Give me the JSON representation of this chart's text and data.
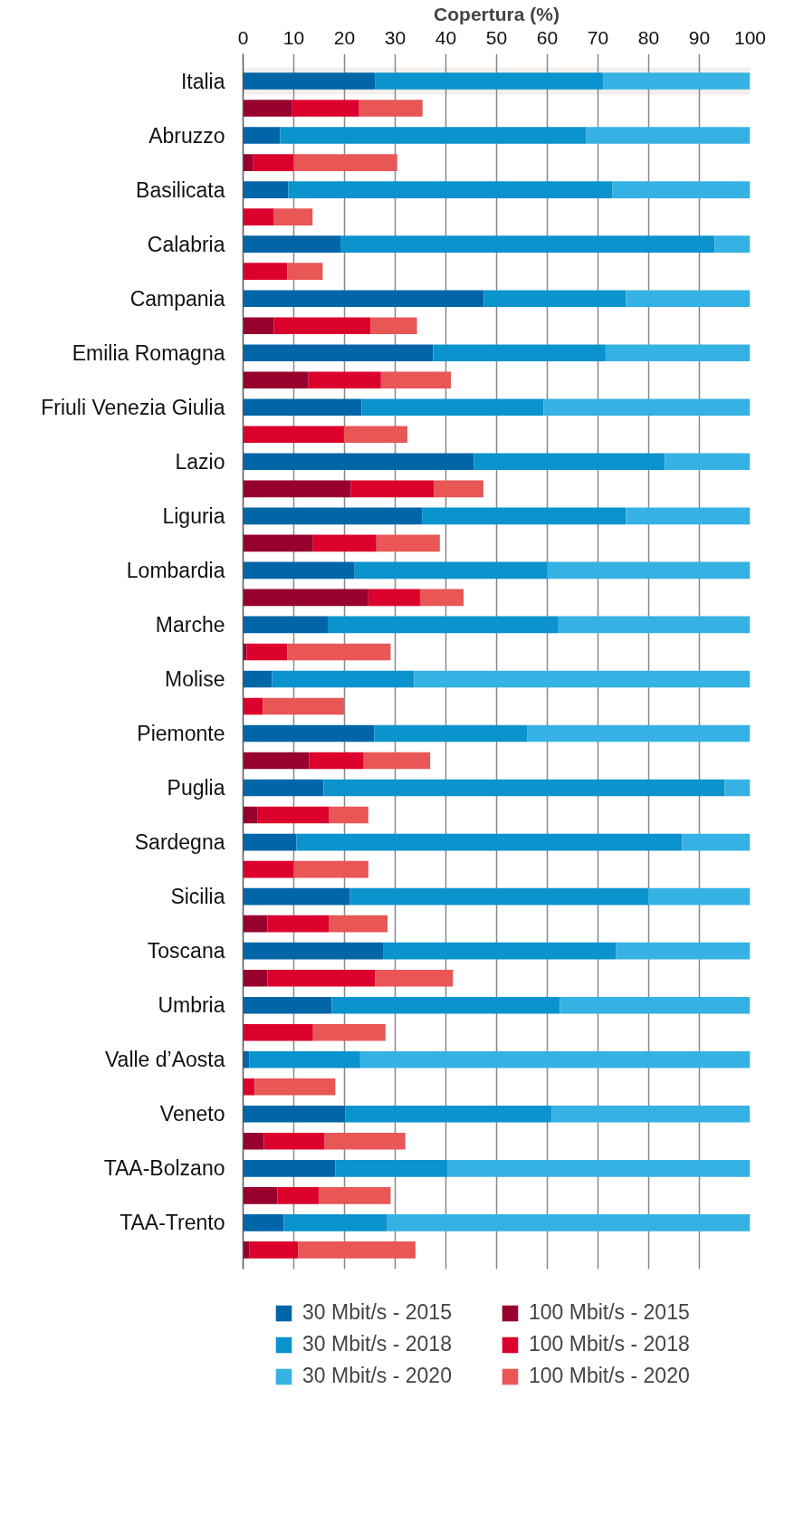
{
  "chart_data": {
    "type": "bar",
    "orientation": "horizontal",
    "stacked": true,
    "xlabel": "Copertura (%)",
    "categories": [
      "Italia",
      null,
      "Abruzzo",
      null,
      "Basilicata",
      null,
      "Calabria",
      null,
      "Campania",
      null,
      "Emilia Romagna",
      null,
      "Friuli Venezia Giulia",
      null,
      "Lazio",
      null,
      "Liguria",
      null,
      "Lombardia",
      null,
      "Marche",
      null,
      "Molise",
      null,
      "Piemonte",
      null,
      "Puglia",
      null,
      "Sardegna",
      null,
      "Sicilia",
      null,
      "Toscana",
      null,
      "Umbria",
      null,
      "Valle d’Aosta",
      null,
      "Veneto",
      null,
      "TAA-Bolzano",
      null,
      "TAA-Trento",
      null
    ],
    "series": [
      {
        "name": "30 Mbit/s - 2015",
        "color": "#0066a8",
        "values": [
          26.1,
          null,
          7.3,
          null,
          8.9,
          null,
          19.2,
          null,
          47.5,
          null,
          37.5,
          null,
          23.4,
          null,
          45.5,
          null,
          35.3,
          null,
          22,
          null,
          16.7,
          null,
          5.7,
          null,
          25.9,
          null,
          15.9,
          null,
          10.5,
          null,
          21.1,
          null,
          27.6,
          null,
          17.5,
          null,
          1.2,
          null,
          20.2,
          null,
          18.2,
          null,
          8,
          null
        ]
      },
      {
        "name": "30 Mbit/s - 2018",
        "color": "#0a93cd",
        "values": [
          44.9,
          null,
          60.4,
          null,
          63.9,
          null,
          73.8,
          null,
          28,
          null,
          34,
          null,
          35.9,
          null,
          37.7,
          null,
          40.2,
          null,
          38,
          null,
          45.5,
          null,
          28,
          null,
          30.2,
          null,
          79.1,
          null,
          76.1,
          null,
          58.8,
          null,
          45.9,
          null,
          45,
          null,
          21.9,
          null,
          40.7,
          null,
          22.2,
          null,
          20.3,
          null
        ]
      },
      {
        "name": "30 Mbit/s - 2020",
        "color": "#35b2e3",
        "values": [
          29,
          null,
          32.3,
          null,
          27.2,
          null,
          7,
          null,
          24.5,
          null,
          28.5,
          null,
          40.7,
          null,
          16.8,
          null,
          24.5,
          null,
          40,
          null,
          37.8,
          null,
          66.3,
          null,
          43.9,
          null,
          5,
          null,
          13.4,
          null,
          20.1,
          null,
          26.5,
          null,
          37.5,
          null,
          76.9,
          null,
          39.1,
          null,
          59.6,
          null,
          71.7,
          null
        ]
      },
      {
        "name": "100 Mbit/s - 2015",
        "color": "#98002e",
        "values": [
          null,
          9.7,
          null,
          1.9,
          null,
          0,
          null,
          0,
          null,
          6.1,
          null,
          12.9,
          null,
          0,
          null,
          21.2,
          null,
          13.8,
          null,
          24.7,
          null,
          0.7,
          null,
          0,
          null,
          13,
          null,
          2.8,
          null,
          0,
          null,
          4.8,
          null,
          4.8,
          null,
          0,
          null,
          0,
          null,
          4.1,
          null,
          6.8,
          null,
          1.2
        ]
      },
      {
        "name": "100 Mbit/s - 2018",
        "color": "#dc002c",
        "values": [
          null,
          13.2,
          null,
          8.1,
          null,
          6.1,
          null,
          8.7,
          null,
          19,
          null,
          14.3,
          null,
          19.9,
          null,
          16.4,
          null,
          12.5,
          null,
          10.2,
          null,
          8,
          null,
          3.9,
          null,
          10.8,
          null,
          14.2,
          null,
          10,
          null,
          12.2,
          null,
          21.2,
          null,
          13.8,
          null,
          2.3,
          null,
          12,
          null,
          8.1,
          null,
          9.7
        ]
      },
      {
        "name": "100 Mbit/s - 2020",
        "color": "#e85656",
        "values": [
          null,
          12.5,
          null,
          20.4,
          null,
          7.6,
          null,
          7,
          null,
          9.2,
          null,
          13.8,
          null,
          12.5,
          null,
          9.8,
          null,
          12.5,
          null,
          8.6,
          null,
          20.4,
          null,
          16,
          null,
          13.1,
          null,
          7.7,
          null,
          14.7,
          null,
          11.5,
          null,
          15.4,
          null,
          14.3,
          null,
          15.9,
          null,
          15.9,
          null,
          14.2,
          null,
          23.1
        ]
      }
    ],
    "xlim": [
      0,
      100
    ],
    "xticks": [
      0,
      10,
      20,
      30,
      40,
      50,
      60,
      70,
      80,
      90,
      100
    ],
    "grid": "x",
    "legend": "bottom",
    "bands": [
      {
        "axis": "y",
        "from": "Italia",
        "to": "Italia",
        "color": "#f2efec"
      }
    ]
  }
}
